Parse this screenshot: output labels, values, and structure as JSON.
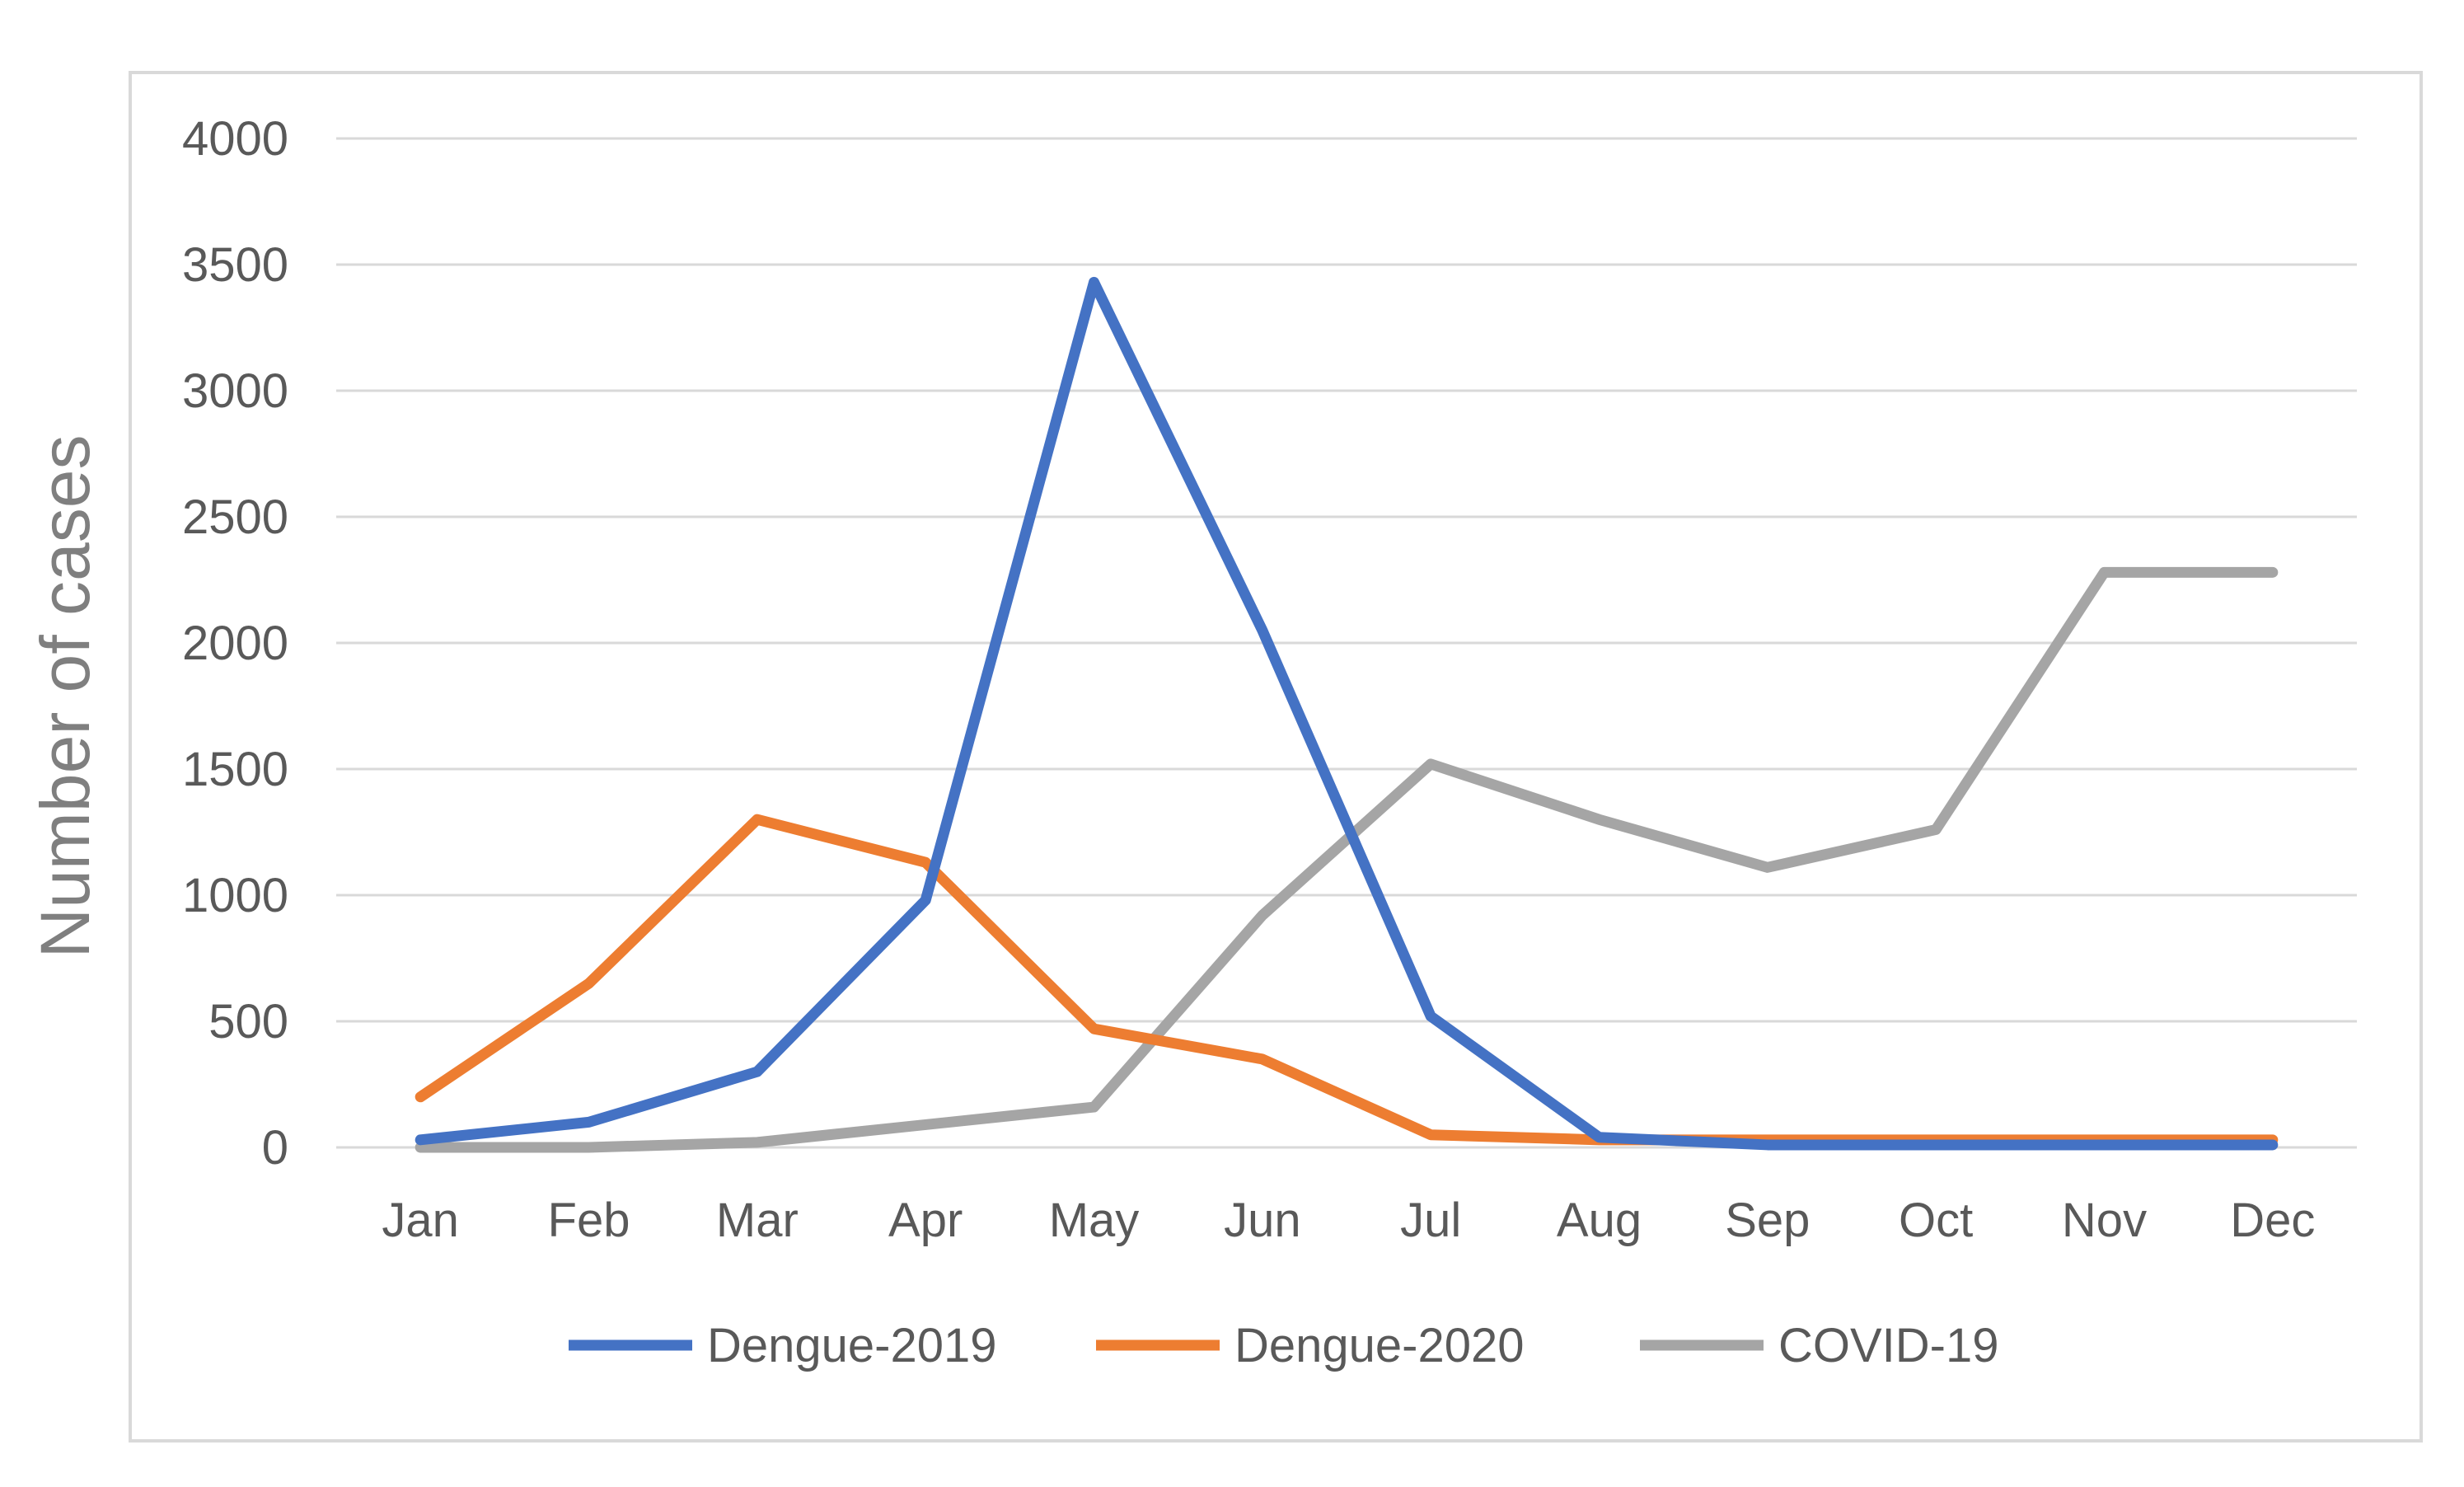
{
  "chart_data": {
    "type": "line",
    "title": "",
    "xlabel": "",
    "ylabel": "Number of cases",
    "ylim": [
      0,
      4000
    ],
    "yticks": [
      0,
      500,
      1000,
      1500,
      2000,
      2500,
      3000,
      3500,
      4000
    ],
    "categories": [
      "Jan",
      "Feb",
      "Mar",
      "Apr",
      "May",
      "Jun",
      "Jul",
      "Aug",
      "Sep",
      "Oct",
      "Nov",
      "Dec"
    ],
    "grid": true,
    "legend_position": "bottom",
    "series": [
      {
        "name": "Dengue-2019",
        "color": "#4472c4",
        "values": [
          30,
          100,
          300,
          980,
          3430,
          2050,
          520,
          40,
          10,
          10,
          10,
          10
        ]
      },
      {
        "name": "Dengue-2020",
        "color": "#ed7d31",
        "values": [
          200,
          650,
          1300,
          1130,
          470,
          350,
          50,
          30,
          30,
          30,
          30,
          30
        ]
      },
      {
        "name": "COVID-19",
        "color": "#a5a5a5",
        "values": [
          0,
          0,
          20,
          90,
          160,
          920,
          1520,
          1300,
          1110,
          1260,
          2280,
          2280
        ]
      }
    ]
  }
}
